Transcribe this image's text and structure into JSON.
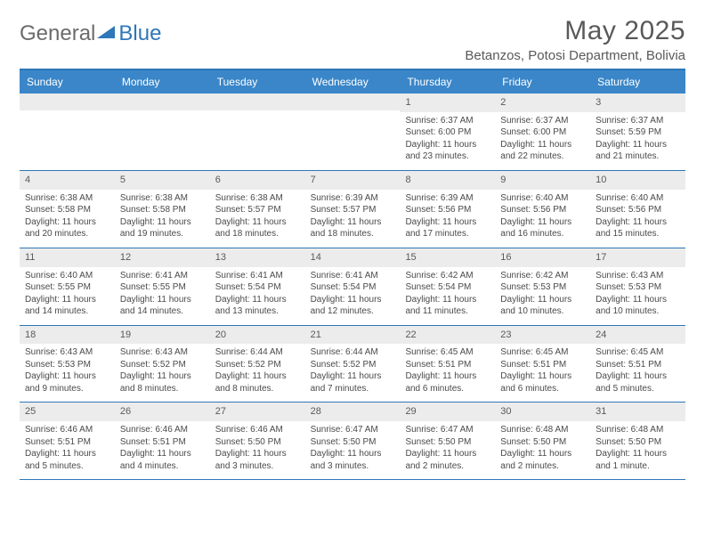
{
  "logo": {
    "text1": "General",
    "text2": "Blue"
  },
  "title": "May 2025",
  "location": "Betanzos, Potosi Department, Bolivia",
  "colors": {
    "header_bg": "#3a86c8",
    "header_text": "#ffffff",
    "border": "#2e77b8",
    "daynum_bg": "#ececec",
    "text": "#4a4a4a",
    "title_text": "#595959"
  },
  "day_names": [
    "Sunday",
    "Monday",
    "Tuesday",
    "Wednesday",
    "Thursday",
    "Friday",
    "Saturday"
  ],
  "weeks": [
    [
      {
        "n": "",
        "sr": "",
        "ss": "",
        "dl": ""
      },
      {
        "n": "",
        "sr": "",
        "ss": "",
        "dl": ""
      },
      {
        "n": "",
        "sr": "",
        "ss": "",
        "dl": ""
      },
      {
        "n": "",
        "sr": "",
        "ss": "",
        "dl": ""
      },
      {
        "n": "1",
        "sr": "Sunrise: 6:37 AM",
        "ss": "Sunset: 6:00 PM",
        "dl": "Daylight: 11 hours and 23 minutes."
      },
      {
        "n": "2",
        "sr": "Sunrise: 6:37 AM",
        "ss": "Sunset: 6:00 PM",
        "dl": "Daylight: 11 hours and 22 minutes."
      },
      {
        "n": "3",
        "sr": "Sunrise: 6:37 AM",
        "ss": "Sunset: 5:59 PM",
        "dl": "Daylight: 11 hours and 21 minutes."
      }
    ],
    [
      {
        "n": "4",
        "sr": "Sunrise: 6:38 AM",
        "ss": "Sunset: 5:58 PM",
        "dl": "Daylight: 11 hours and 20 minutes."
      },
      {
        "n": "5",
        "sr": "Sunrise: 6:38 AM",
        "ss": "Sunset: 5:58 PM",
        "dl": "Daylight: 11 hours and 19 minutes."
      },
      {
        "n": "6",
        "sr": "Sunrise: 6:38 AM",
        "ss": "Sunset: 5:57 PM",
        "dl": "Daylight: 11 hours and 18 minutes."
      },
      {
        "n": "7",
        "sr": "Sunrise: 6:39 AM",
        "ss": "Sunset: 5:57 PM",
        "dl": "Daylight: 11 hours and 18 minutes."
      },
      {
        "n": "8",
        "sr": "Sunrise: 6:39 AM",
        "ss": "Sunset: 5:56 PM",
        "dl": "Daylight: 11 hours and 17 minutes."
      },
      {
        "n": "9",
        "sr": "Sunrise: 6:40 AM",
        "ss": "Sunset: 5:56 PM",
        "dl": "Daylight: 11 hours and 16 minutes."
      },
      {
        "n": "10",
        "sr": "Sunrise: 6:40 AM",
        "ss": "Sunset: 5:56 PM",
        "dl": "Daylight: 11 hours and 15 minutes."
      }
    ],
    [
      {
        "n": "11",
        "sr": "Sunrise: 6:40 AM",
        "ss": "Sunset: 5:55 PM",
        "dl": "Daylight: 11 hours and 14 minutes."
      },
      {
        "n": "12",
        "sr": "Sunrise: 6:41 AM",
        "ss": "Sunset: 5:55 PM",
        "dl": "Daylight: 11 hours and 14 minutes."
      },
      {
        "n": "13",
        "sr": "Sunrise: 6:41 AM",
        "ss": "Sunset: 5:54 PM",
        "dl": "Daylight: 11 hours and 13 minutes."
      },
      {
        "n": "14",
        "sr": "Sunrise: 6:41 AM",
        "ss": "Sunset: 5:54 PM",
        "dl": "Daylight: 11 hours and 12 minutes."
      },
      {
        "n": "15",
        "sr": "Sunrise: 6:42 AM",
        "ss": "Sunset: 5:54 PM",
        "dl": "Daylight: 11 hours and 11 minutes."
      },
      {
        "n": "16",
        "sr": "Sunrise: 6:42 AM",
        "ss": "Sunset: 5:53 PM",
        "dl": "Daylight: 11 hours and 10 minutes."
      },
      {
        "n": "17",
        "sr": "Sunrise: 6:43 AM",
        "ss": "Sunset: 5:53 PM",
        "dl": "Daylight: 11 hours and 10 minutes."
      }
    ],
    [
      {
        "n": "18",
        "sr": "Sunrise: 6:43 AM",
        "ss": "Sunset: 5:53 PM",
        "dl": "Daylight: 11 hours and 9 minutes."
      },
      {
        "n": "19",
        "sr": "Sunrise: 6:43 AM",
        "ss": "Sunset: 5:52 PM",
        "dl": "Daylight: 11 hours and 8 minutes."
      },
      {
        "n": "20",
        "sr": "Sunrise: 6:44 AM",
        "ss": "Sunset: 5:52 PM",
        "dl": "Daylight: 11 hours and 8 minutes."
      },
      {
        "n": "21",
        "sr": "Sunrise: 6:44 AM",
        "ss": "Sunset: 5:52 PM",
        "dl": "Daylight: 11 hours and 7 minutes."
      },
      {
        "n": "22",
        "sr": "Sunrise: 6:45 AM",
        "ss": "Sunset: 5:51 PM",
        "dl": "Daylight: 11 hours and 6 minutes."
      },
      {
        "n": "23",
        "sr": "Sunrise: 6:45 AM",
        "ss": "Sunset: 5:51 PM",
        "dl": "Daylight: 11 hours and 6 minutes."
      },
      {
        "n": "24",
        "sr": "Sunrise: 6:45 AM",
        "ss": "Sunset: 5:51 PM",
        "dl": "Daylight: 11 hours and 5 minutes."
      }
    ],
    [
      {
        "n": "25",
        "sr": "Sunrise: 6:46 AM",
        "ss": "Sunset: 5:51 PM",
        "dl": "Daylight: 11 hours and 5 minutes."
      },
      {
        "n": "26",
        "sr": "Sunrise: 6:46 AM",
        "ss": "Sunset: 5:51 PM",
        "dl": "Daylight: 11 hours and 4 minutes."
      },
      {
        "n": "27",
        "sr": "Sunrise: 6:46 AM",
        "ss": "Sunset: 5:50 PM",
        "dl": "Daylight: 11 hours and 3 minutes."
      },
      {
        "n": "28",
        "sr": "Sunrise: 6:47 AM",
        "ss": "Sunset: 5:50 PM",
        "dl": "Daylight: 11 hours and 3 minutes."
      },
      {
        "n": "29",
        "sr": "Sunrise: 6:47 AM",
        "ss": "Sunset: 5:50 PM",
        "dl": "Daylight: 11 hours and 2 minutes."
      },
      {
        "n": "30",
        "sr": "Sunrise: 6:48 AM",
        "ss": "Sunset: 5:50 PM",
        "dl": "Daylight: 11 hours and 2 minutes."
      },
      {
        "n": "31",
        "sr": "Sunrise: 6:48 AM",
        "ss": "Sunset: 5:50 PM",
        "dl": "Daylight: 11 hours and 1 minute."
      }
    ]
  ]
}
